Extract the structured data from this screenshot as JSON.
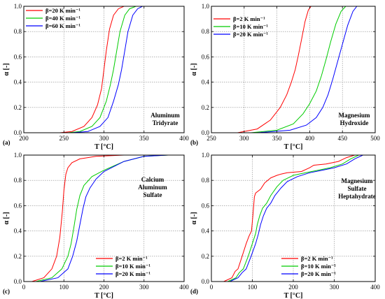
{
  "colors": {
    "red": "#ff0000",
    "green": "#00cc00",
    "blue": "#0000ff",
    "grid": "#888888"
  },
  "chart_data": [
    {
      "panel": "(a)",
      "type": "line",
      "xlabel": "T [°C]",
      "ylabel": "α [-]",
      "xlim": [
        200,
        400
      ],
      "ylim": [
        0,
        1
      ],
      "xticks": [
        "200",
        "250",
        "300",
        "350",
        "400"
      ],
      "yticks": [
        "0.0",
        "0.2",
        "0.4",
        "0.6",
        "0.8",
        "1.0"
      ],
      "grid": true,
      "legend_position": "top-left",
      "annotation": [
        "Aluminum",
        "Tridyrate"
      ],
      "series": [
        {
          "name": "β=20 K min⁻¹",
          "color": "red",
          "x": [
            245,
            260,
            275,
            285,
            292,
            297,
            300,
            303,
            307,
            312,
            318,
            325,
            335
          ],
          "y": [
            0,
            0.01,
            0.05,
            0.12,
            0.22,
            0.35,
            0.5,
            0.65,
            0.82,
            0.93,
            0.98,
            1.0,
            1.0
          ]
        },
        {
          "name": "β=40 K min⁻¹",
          "color": "green",
          "x": [
            255,
            270,
            285,
            295,
            303,
            308,
            312,
            316,
            320,
            326,
            332,
            340,
            350
          ],
          "y": [
            0,
            0.01,
            0.05,
            0.12,
            0.25,
            0.38,
            0.5,
            0.65,
            0.8,
            0.93,
            0.98,
            1.0,
            1.0
          ]
        },
        {
          "name": "β=60 K min⁻¹",
          "color": "blue",
          "x": [
            260,
            280,
            295,
            305,
            312,
            318,
            322,
            326,
            330,
            336,
            342,
            348,
            355
          ],
          "y": [
            0,
            0.01,
            0.05,
            0.12,
            0.25,
            0.38,
            0.5,
            0.65,
            0.8,
            0.93,
            0.98,
            1.0,
            1.0
          ]
        }
      ]
    },
    {
      "panel": "(b)",
      "type": "line",
      "xlabel": "T [°C]",
      "ylabel": "α [-]",
      "xlim": [
        250,
        500
      ],
      "ylim": [
        0,
        1
      ],
      "xticks": [
        "250",
        "300",
        "350",
        "400",
        "450",
        "500"
      ],
      "yticks": [
        "0.0",
        "0.2",
        "0.4",
        "0.6",
        "0.8",
        "1.0"
      ],
      "grid": true,
      "legend_position": "top-left",
      "annotation": [
        "Magnesium",
        "Hydroxide"
      ],
      "series": [
        {
          "name": "β=2 K min⁻¹",
          "color": "red",
          "x": [
            290,
            320,
            340,
            355,
            365,
            372,
            378,
            383,
            388,
            393,
            398,
            402,
            410
          ],
          "y": [
            0,
            0.03,
            0.1,
            0.2,
            0.3,
            0.4,
            0.5,
            0.62,
            0.75,
            0.88,
            0.97,
            1.0,
            1.0
          ]
        },
        {
          "name": "β=10 K min⁻¹",
          "color": "green",
          "x": [
            310,
            350,
            375,
            390,
            400,
            410,
            418,
            425,
            432,
            440,
            448,
            455,
            465
          ],
          "y": [
            0,
            0.02,
            0.07,
            0.15,
            0.23,
            0.33,
            0.45,
            0.58,
            0.72,
            0.86,
            0.96,
            1.0,
            1.0
          ]
        },
        {
          "name": "β=20 K min⁻¹",
          "color": "blue",
          "x": [
            320,
            370,
            395,
            410,
            420,
            428,
            435,
            442,
            450,
            458,
            466,
            472,
            480
          ],
          "y": [
            0,
            0.02,
            0.06,
            0.12,
            0.2,
            0.3,
            0.42,
            0.55,
            0.7,
            0.85,
            0.96,
            1.0,
            1.0
          ]
        }
      ]
    },
    {
      "panel": "(c)",
      "type": "line",
      "xlabel": "T [°C]",
      "ylabel": "α [-]",
      "xlim": [
        0,
        400
      ],
      "ylim": [
        0,
        1
      ],
      "xticks": [
        "0",
        "100",
        "200",
        "300",
        "400"
      ],
      "yticks": [
        "0.0",
        "0.2",
        "0.4",
        "0.6",
        "0.8",
        "1.0"
      ],
      "grid": true,
      "legend_position": "bottom-right",
      "annotation": [
        "Calcium",
        "Aluminum",
        "Sulfate"
      ],
      "series": [
        {
          "name": "β=2 K min⁻¹",
          "color": "red",
          "x": [
            20,
            50,
            70,
            82,
            90,
            96,
            100,
            105,
            110,
            120,
            140,
            180,
            250,
            320,
            360
          ],
          "y": [
            0,
            0.03,
            0.1,
            0.2,
            0.35,
            0.55,
            0.72,
            0.85,
            0.9,
            0.94,
            0.97,
            0.99,
            1.0,
            1.0,
            1.0
          ]
        },
        {
          "name": "β=10 K min⁻¹",
          "color": "green",
          "x": [
            30,
            70,
            95,
            110,
            118,
            125,
            132,
            140,
            150,
            170,
            200,
            250,
            300,
            360
          ],
          "y": [
            0,
            0.03,
            0.1,
            0.2,
            0.3,
            0.43,
            0.57,
            0.68,
            0.76,
            0.83,
            0.88,
            0.95,
            0.99,
            1.0
          ]
        },
        {
          "name": "β=20 K min⁻¹",
          "color": "blue",
          "x": [
            40,
            85,
            110,
            122,
            132,
            140,
            148,
            155,
            165,
            180,
            200,
            250,
            300,
            360
          ],
          "y": [
            0,
            0.03,
            0.1,
            0.2,
            0.32,
            0.45,
            0.58,
            0.67,
            0.74,
            0.81,
            0.87,
            0.95,
            0.99,
            1.0
          ]
        }
      ]
    },
    {
      "panel": "(d)",
      "type": "line",
      "xlabel": "T [°C]",
      "ylabel": "α [-]",
      "xlim": [
        0,
        400
      ],
      "ylim": [
        0,
        1
      ],
      "xticks": [
        "0",
        "100",
        "200",
        "300",
        "400"
      ],
      "yticks": [
        "0.0",
        "0.2",
        "0.4",
        "0.6",
        "0.8",
        "1.0"
      ],
      "grid": true,
      "legend_position": "bottom-right",
      "annotation": [
        "Magnesium",
        "Sulfate",
        "Heptahydrate"
      ],
      "series": [
        {
          "name": "β=2 K min⁻¹",
          "color": "red",
          "x": [
            30,
            50,
            58,
            65,
            75,
            85,
            92,
            98,
            102,
            105,
            108,
            112,
            120,
            130,
            145,
            160,
            170,
            185,
            220,
            240,
            250,
            280,
            310,
            330,
            350,
            370
          ],
          "y": [
            0,
            0.03,
            0.08,
            0.1,
            0.2,
            0.3,
            0.36,
            0.4,
            0.55,
            0.67,
            0.7,
            0.71,
            0.73,
            0.78,
            0.82,
            0.84,
            0.85,
            0.86,
            0.87,
            0.9,
            0.92,
            0.93,
            0.95,
            0.98,
            1.0,
            1.0
          ]
        },
        {
          "name": "β=10 K min⁻¹",
          "color": "green",
          "x": [
            40,
            60,
            68,
            78,
            90,
            100,
            108,
            112,
            118,
            125,
            135,
            145,
            160,
            175,
            200,
            230,
            260,
            290,
            320,
            340,
            360,
            380
          ],
          "y": [
            0,
            0.03,
            0.07,
            0.1,
            0.2,
            0.3,
            0.38,
            0.45,
            0.52,
            0.58,
            0.62,
            0.68,
            0.75,
            0.8,
            0.84,
            0.86,
            0.88,
            0.9,
            0.93,
            0.97,
            1.0,
            1.0
          ]
        },
        {
          "name": "β=20 K min⁻¹",
          "color": "blue",
          "x": [
            45,
            65,
            75,
            85,
            97,
            108,
            115,
            120,
            127,
            135,
            145,
            155,
            170,
            185,
            210,
            240,
            270,
            300,
            330,
            350,
            370,
            385
          ],
          "y": [
            0,
            0.03,
            0.07,
            0.1,
            0.2,
            0.3,
            0.38,
            0.45,
            0.52,
            0.58,
            0.62,
            0.68,
            0.74,
            0.79,
            0.83,
            0.86,
            0.88,
            0.9,
            0.93,
            0.97,
            1.0,
            1.0
          ]
        }
      ]
    }
  ]
}
